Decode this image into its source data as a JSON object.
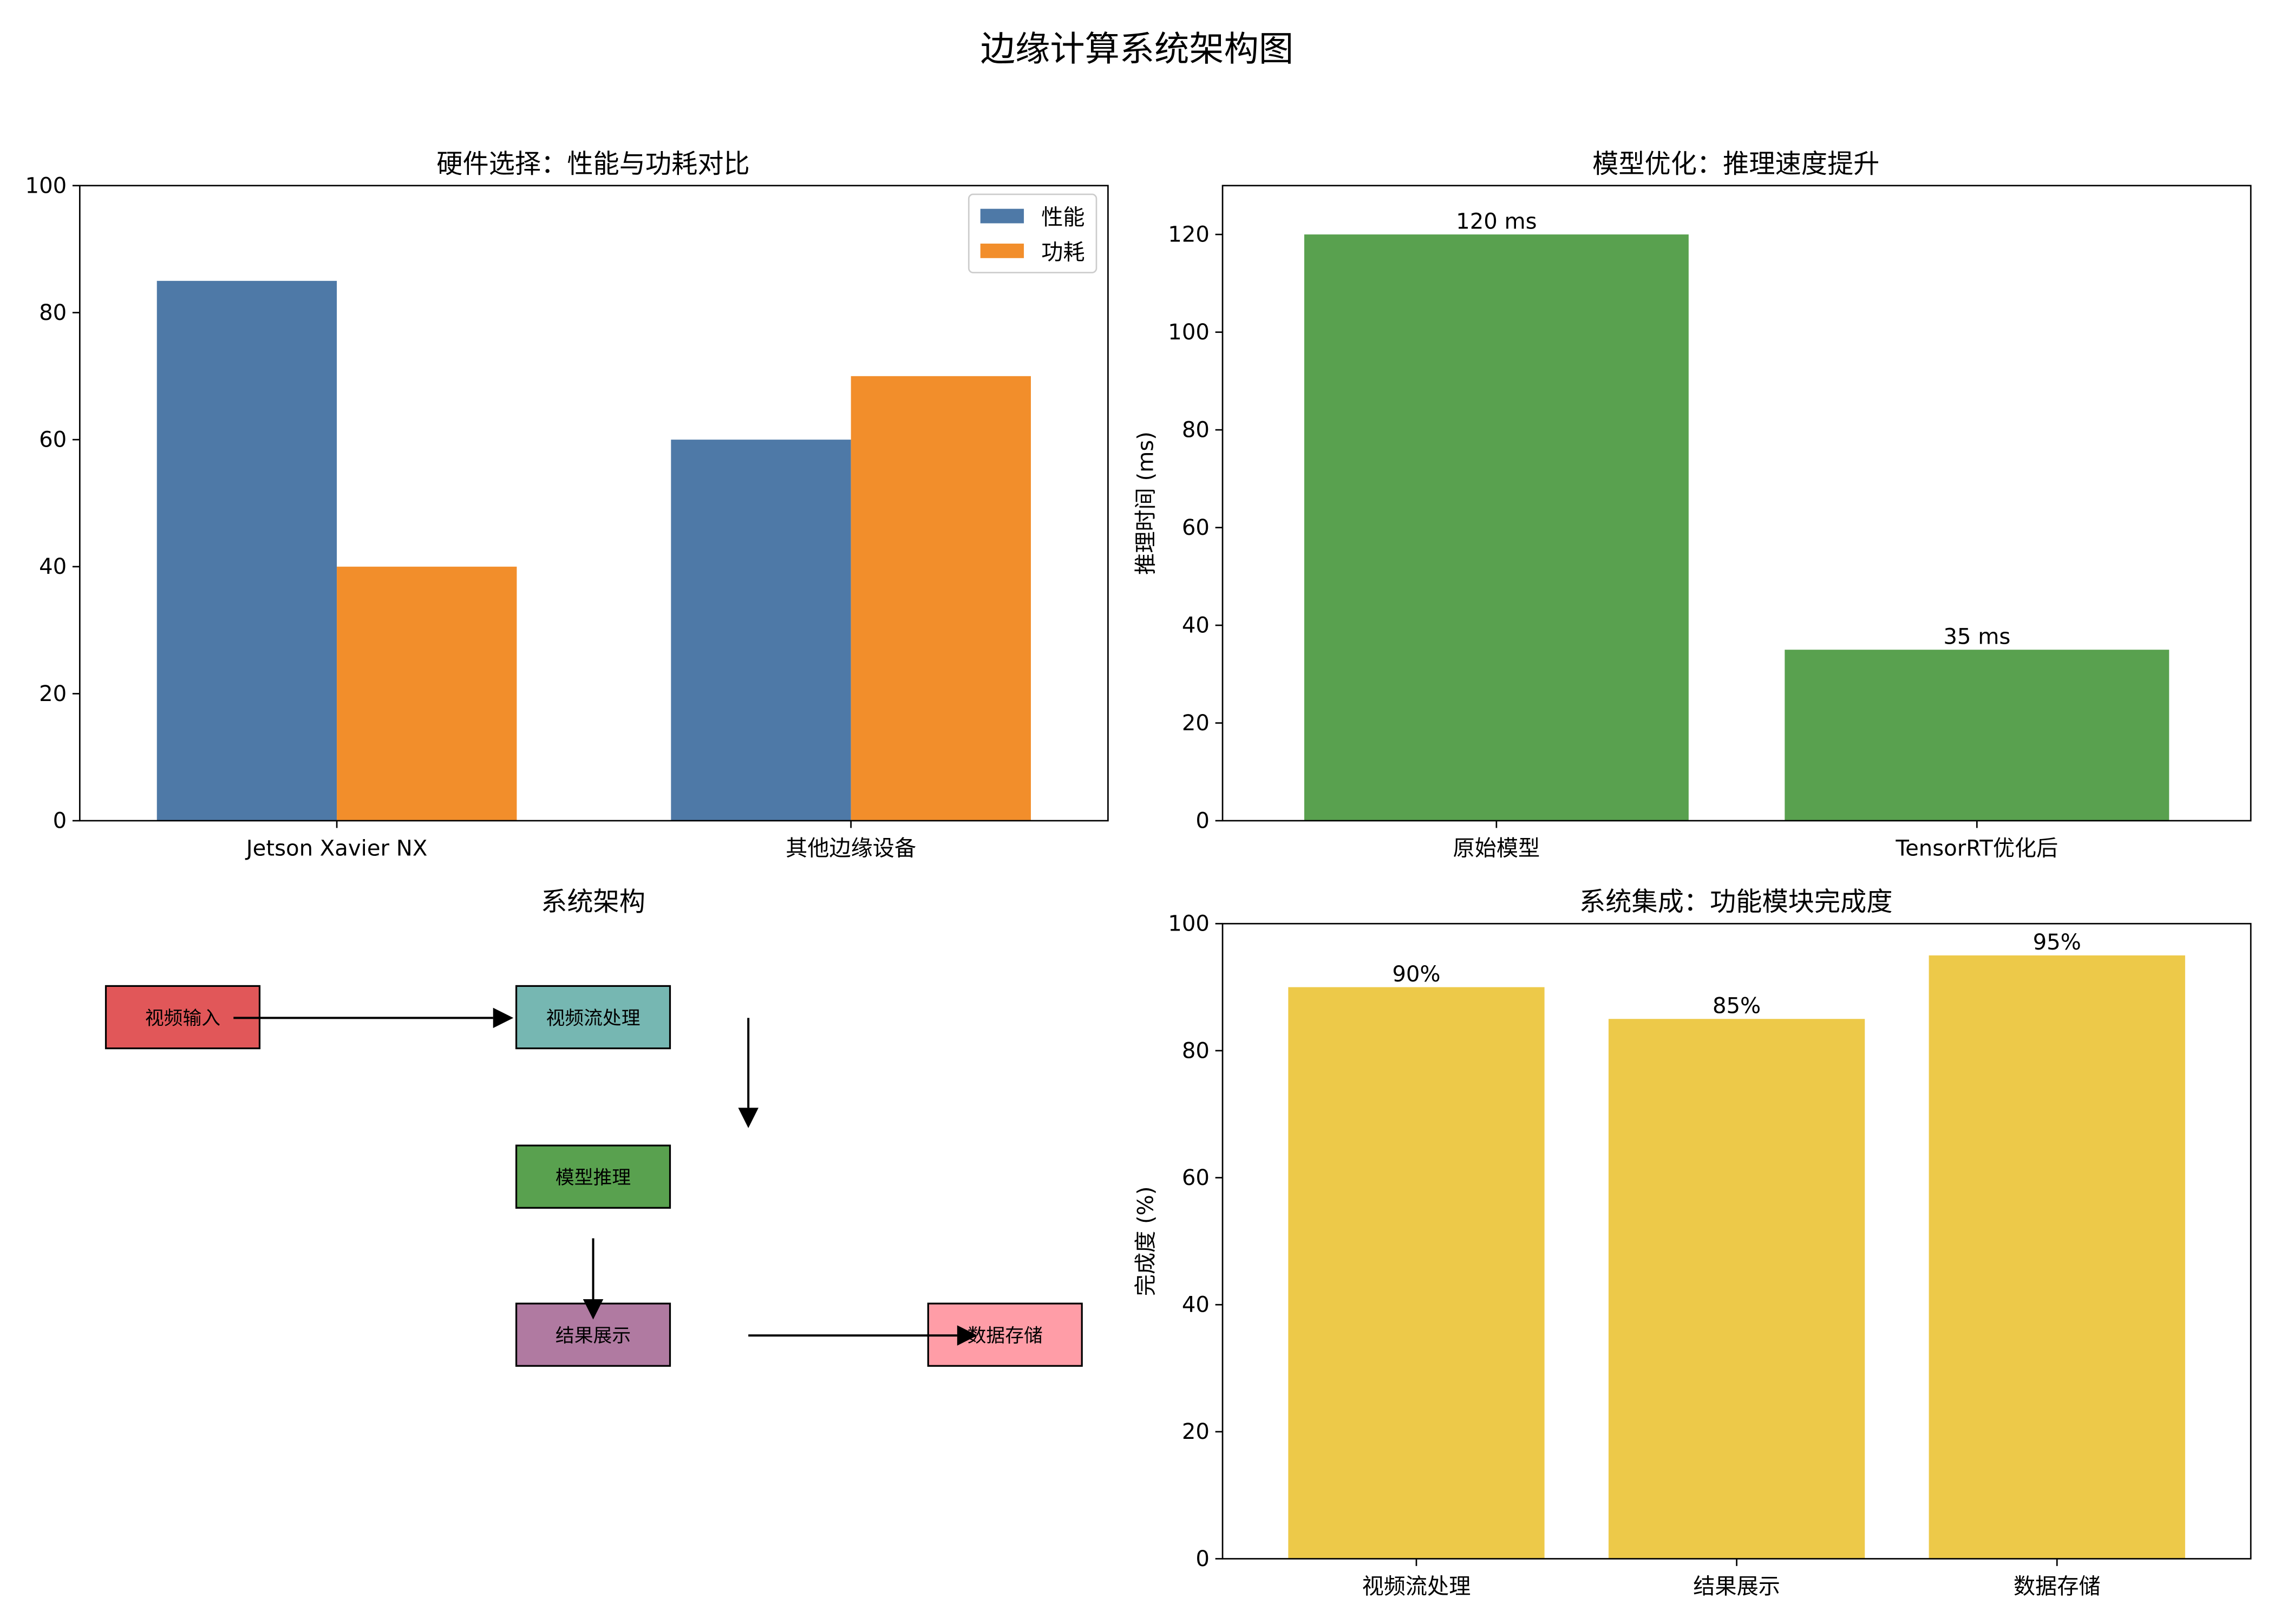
{
  "figure": {
    "suptitle": "边缘计算系统架构图"
  },
  "colors": {
    "performance": "#4e79a7",
    "power": "#f28e2b",
    "inference": "#59a14f",
    "integration": "#edc949",
    "node_input": "#e15759",
    "node_stream": "#76b7b2",
    "node_model": "#59a14f",
    "node_result": "#b07aa1",
    "node_storage": "#ff9da7"
  },
  "architecture": {
    "title": "系统架构",
    "nodes": [
      {
        "id": "input",
        "label": "视频输入",
        "color_key": "node_input"
      },
      {
        "id": "stream",
        "label": "视频流处理",
        "color_key": "node_stream"
      },
      {
        "id": "model",
        "label": "模型推理",
        "color_key": "node_model"
      },
      {
        "id": "result",
        "label": "结果展示",
        "color_key": "node_result"
      },
      {
        "id": "storage",
        "label": "数据存储",
        "color_key": "node_storage"
      }
    ]
  },
  "chart_data": [
    {
      "id": "hardware",
      "type": "bar",
      "title": "硬件选择：性能与功耗对比",
      "xlabel": "",
      "ylabel": "",
      "categories": [
        "Jetson Xavier NX",
        "其他边缘设备"
      ],
      "series": [
        {
          "name": "性能",
          "values": [
            85,
            60
          ],
          "color_key": "performance"
        },
        {
          "name": "功耗",
          "values": [
            40,
            70
          ],
          "color_key": "power"
        }
      ],
      "ylim": [
        0,
        100
      ],
      "yticks": [
        0,
        20,
        40,
        60,
        80,
        100
      ],
      "legend": "top-right",
      "grid": false
    },
    {
      "id": "model_opt",
      "type": "bar",
      "title": "模型优化：推理速度提升",
      "xlabel": "",
      "ylabel": "推理时间 (ms)",
      "categories": [
        "原始模型",
        "TensorRT优化后"
      ],
      "values": [
        120,
        35
      ],
      "data_labels": [
        "120 ms",
        "35 ms"
      ],
      "color_key": "inference",
      "ylim": [
        0,
        130
      ],
      "yticks": [
        0,
        20,
        40,
        60,
        80,
        100,
        120
      ],
      "grid": false
    },
    {
      "id": "integration",
      "type": "bar",
      "title": "系统集成：功能模块完成度",
      "xlabel": "",
      "ylabel": "完成度 (%)",
      "categories": [
        "视频流处理",
        "结果展示",
        "数据存储"
      ],
      "values": [
        90,
        85,
        95
      ],
      "data_labels": [
        "90%",
        "85%",
        "95%"
      ],
      "color_key": "integration",
      "ylim": [
        0,
        100
      ],
      "yticks": [
        0,
        20,
        40,
        60,
        80,
        100
      ],
      "grid": false
    }
  ]
}
